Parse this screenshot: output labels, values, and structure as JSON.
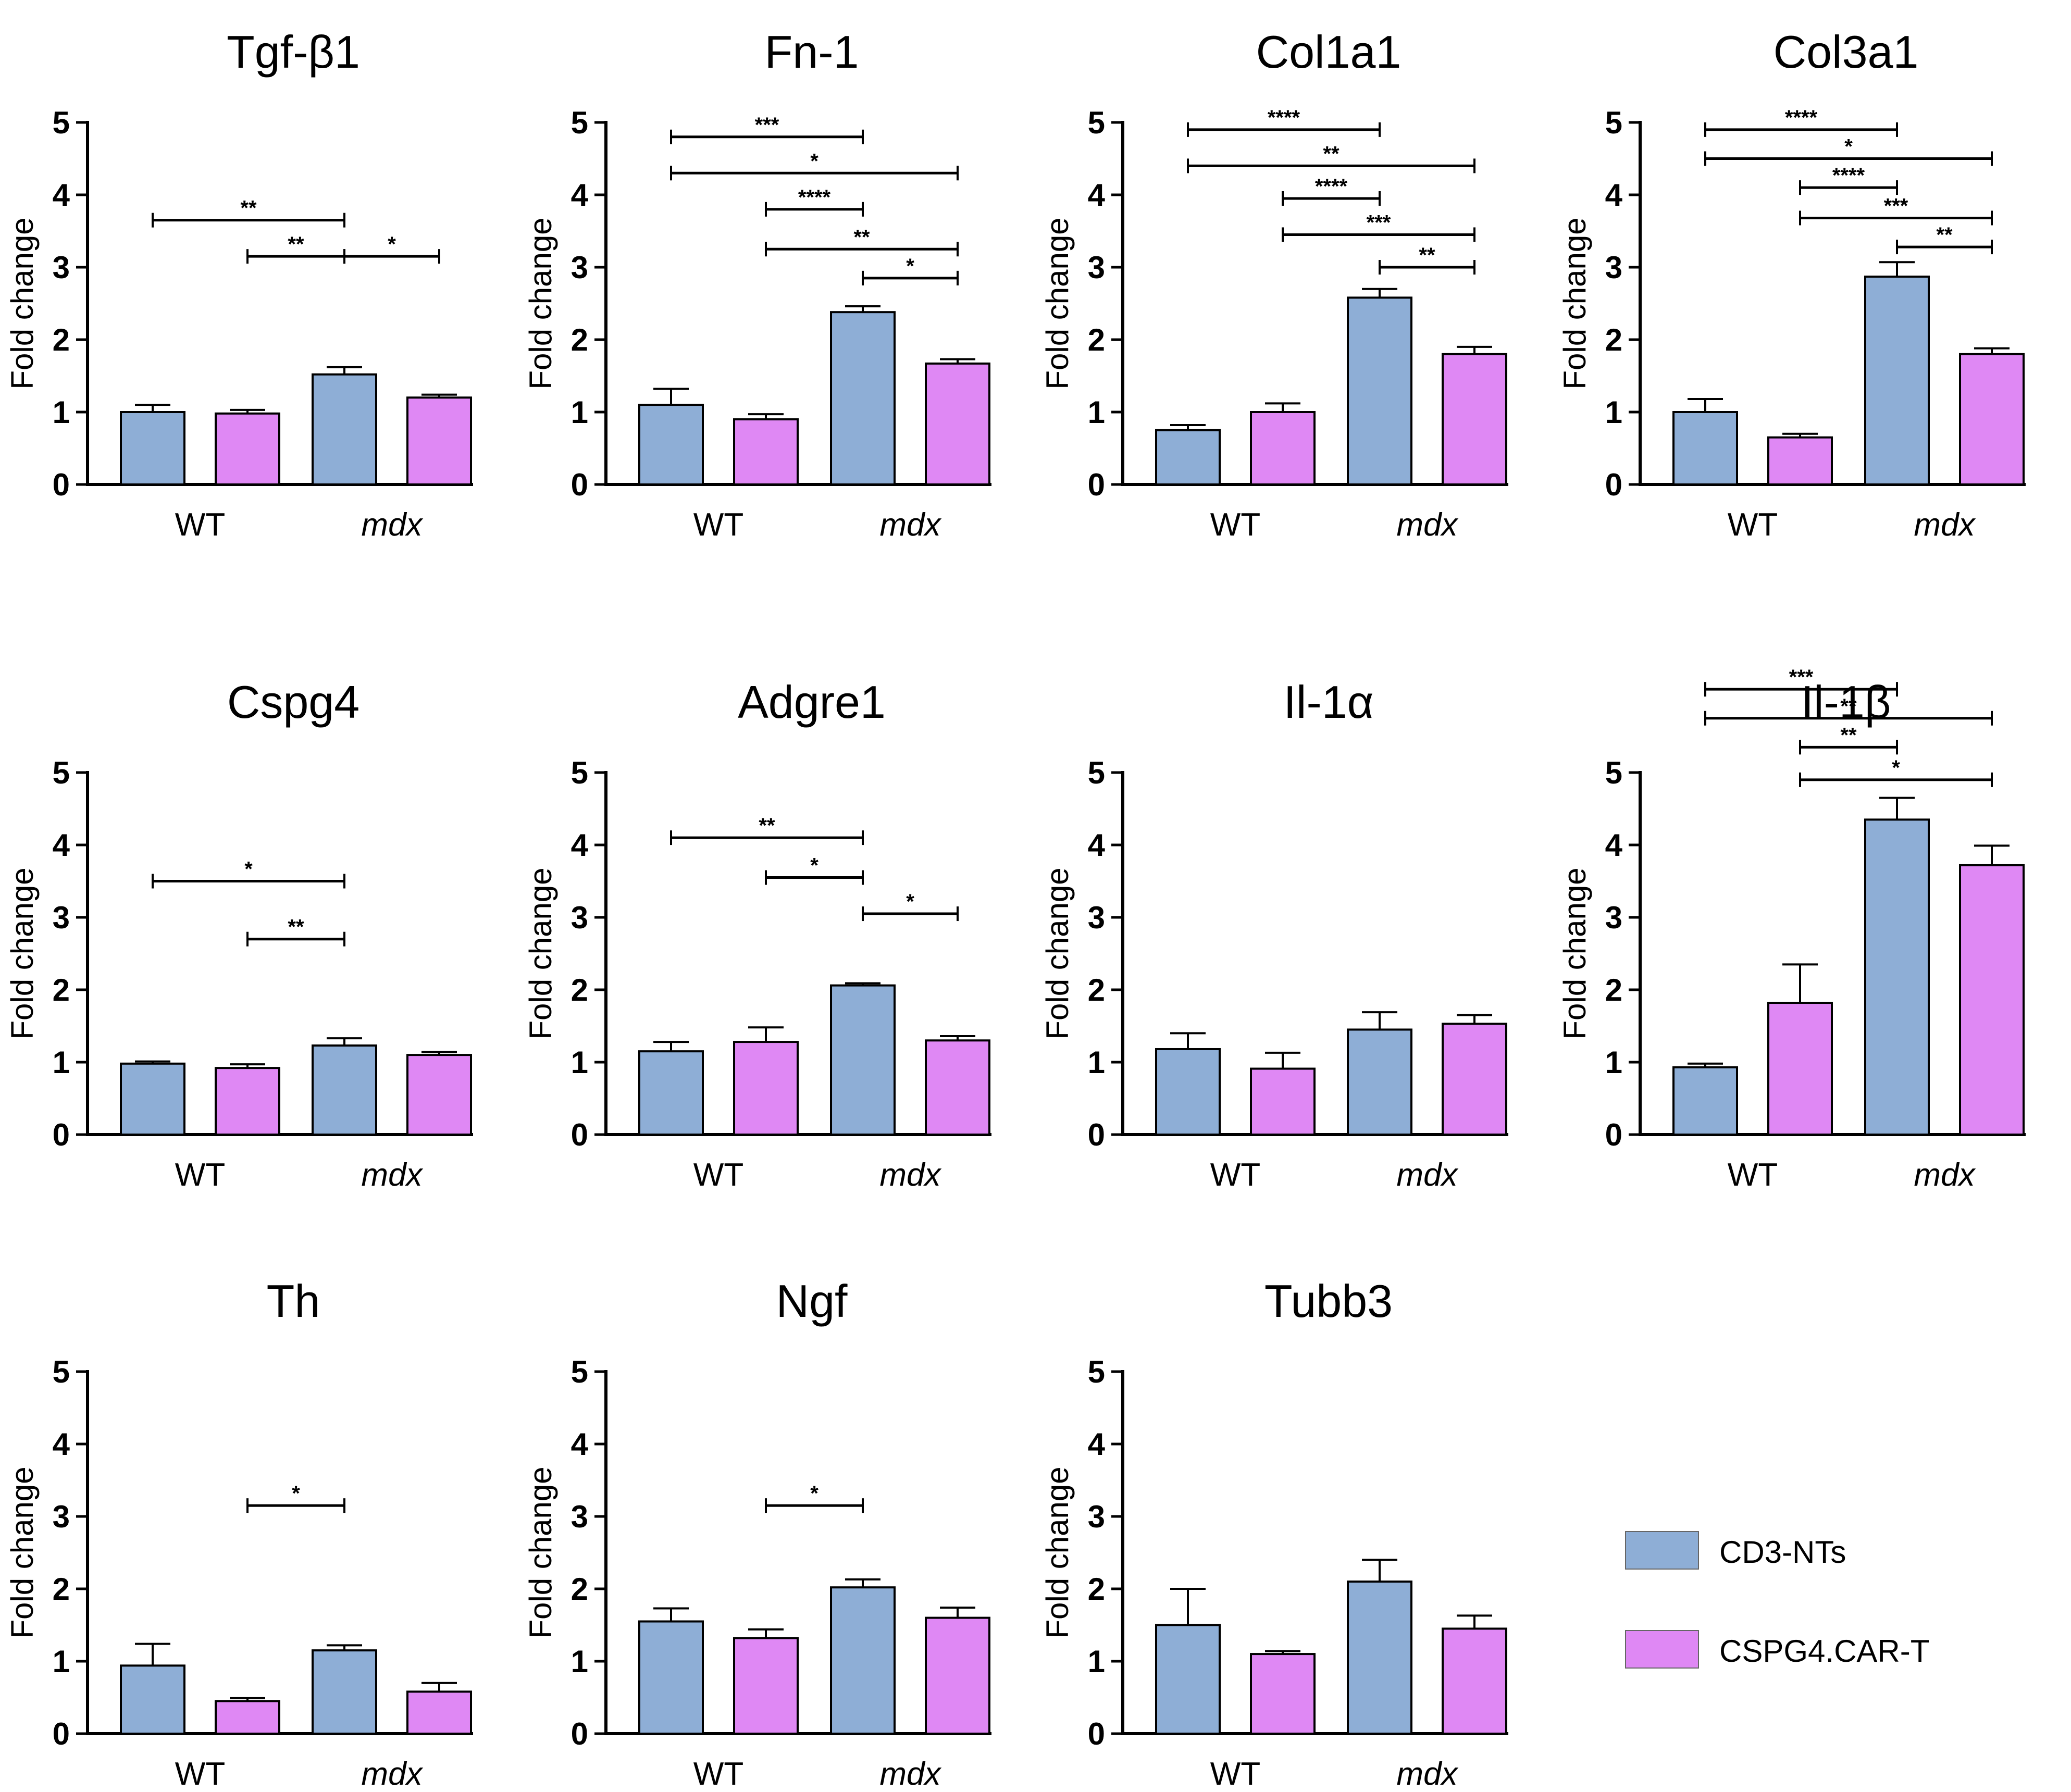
{
  "figure": {
    "legend": [
      {
        "label": "CD3-NTs",
        "color": "#8eaed6"
      },
      {
        "label": "CSPG4.CAR-T",
        "color": "#df88f4"
      }
    ],
    "ylabel": "Fold change",
    "xcategories": [
      "WT",
      "mdx"
    ],
    "yticks": [
      "0",
      "1",
      "2",
      "3",
      "4",
      "5"
    ]
  },
  "chart_data": [
    {
      "type": "bar",
      "title": "Tgf-β1",
      "ylabel": "Fold change",
      "ylim": [
        0,
        5
      ],
      "categories": [
        "WT",
        "mdx"
      ],
      "series": [
        {
          "name": "CD3-NTs",
          "color": "#8eaed6"
        },
        {
          "name": "CSPG4.CAR-T",
          "color": "#df88f4"
        }
      ],
      "bars": [
        {
          "value": 1.0,
          "err": 0.1
        },
        {
          "value": 0.98,
          "err": 0.05
        },
        {
          "value": 1.52,
          "err": 0.1
        },
        {
          "value": 1.2,
          "err": 0.04
        }
      ],
      "significance": [
        {
          "from": 0,
          "to": 2,
          "y": 3.65,
          "label": "**"
        },
        {
          "from": 1,
          "to": 2,
          "y": 3.15,
          "label": "**"
        },
        {
          "from": 2,
          "to": 3,
          "y": 3.15,
          "label": "*"
        }
      ]
    },
    {
      "type": "bar",
      "title": "Fn-1",
      "ylabel": "Fold change",
      "ylim": [
        0,
        5
      ],
      "categories": [
        "WT",
        "mdx"
      ],
      "series": [
        {
          "name": "CD3-NTs",
          "color": "#8eaed6"
        },
        {
          "name": "CSPG4.CAR-T",
          "color": "#df88f4"
        }
      ],
      "bars": [
        {
          "value": 1.1,
          "err": 0.22
        },
        {
          "value": 0.9,
          "err": 0.07
        },
        {
          "value": 2.38,
          "err": 0.08
        },
        {
          "value": 1.67,
          "err": 0.06
        }
      ],
      "significance": [
        {
          "from": 0,
          "to": 2,
          "y": 4.8,
          "label": "***"
        },
        {
          "from": 0,
          "to": 3,
          "y": 4.3,
          "label": "*"
        },
        {
          "from": 1,
          "to": 2,
          "y": 3.8,
          "label": "****"
        },
        {
          "from": 1,
          "to": 3,
          "y": 3.25,
          "label": "**"
        },
        {
          "from": 2,
          "to": 3,
          "y": 2.85,
          "label": "*"
        }
      ]
    },
    {
      "type": "bar",
      "title": "Col1a1",
      "ylabel": "Fold change",
      "ylim": [
        0,
        5
      ],
      "categories": [
        "WT",
        "mdx"
      ],
      "series": [
        {
          "name": "CD3-NTs",
          "color": "#8eaed6"
        },
        {
          "name": "CSPG4.CAR-T",
          "color": "#df88f4"
        }
      ],
      "bars": [
        {
          "value": 0.75,
          "err": 0.07
        },
        {
          "value": 1.0,
          "err": 0.12
        },
        {
          "value": 2.58,
          "err": 0.12
        },
        {
          "value": 1.8,
          "err": 0.1
        }
      ],
      "significance": [
        {
          "from": 0,
          "to": 2,
          "y": 4.9,
          "label": "****"
        },
        {
          "from": 0,
          "to": 3,
          "y": 4.4,
          "label": "**"
        },
        {
          "from": 1,
          "to": 2,
          "y": 3.95,
          "label": "****"
        },
        {
          "from": 1,
          "to": 3,
          "y": 3.45,
          "label": "***"
        },
        {
          "from": 2,
          "to": 3,
          "y": 3.0,
          "label": "**"
        }
      ]
    },
    {
      "type": "bar",
      "title": "Col3a1",
      "ylabel": "Fold change",
      "ylim": [
        0,
        5
      ],
      "categories": [
        "WT",
        "mdx"
      ],
      "series": [
        {
          "name": "CD3-NTs",
          "color": "#8eaed6"
        },
        {
          "name": "CSPG4.CAR-T",
          "color": "#df88f4"
        }
      ],
      "bars": [
        {
          "value": 1.0,
          "err": 0.18
        },
        {
          "value": 0.65,
          "err": 0.05
        },
        {
          "value": 2.87,
          "err": 0.2
        },
        {
          "value": 1.8,
          "err": 0.08
        }
      ],
      "significance": [
        {
          "from": 0,
          "to": 2,
          "y": 4.9,
          "label": "****"
        },
        {
          "from": 0,
          "to": 3,
          "y": 4.5,
          "label": "*"
        },
        {
          "from": 1,
          "to": 2,
          "y": 4.1,
          "label": "****"
        },
        {
          "from": 1,
          "to": 3,
          "y": 3.68,
          "label": "***"
        },
        {
          "from": 2,
          "to": 3,
          "y": 3.28,
          "label": "**"
        }
      ]
    },
    {
      "type": "bar",
      "title": "Cspg4",
      "ylabel": "Fold change",
      "ylim": [
        0,
        5
      ],
      "categories": [
        "WT",
        "mdx"
      ],
      "series": [
        {
          "name": "CD3-NTs",
          "color": "#8eaed6"
        },
        {
          "name": "CSPG4.CAR-T",
          "color": "#df88f4"
        }
      ],
      "bars": [
        {
          "value": 0.98,
          "err": 0.03
        },
        {
          "value": 0.92,
          "err": 0.05
        },
        {
          "value": 1.23,
          "err": 0.1
        },
        {
          "value": 1.1,
          "err": 0.04
        }
      ],
      "significance": [
        {
          "from": 0,
          "to": 2,
          "y": 3.5,
          "label": "*"
        },
        {
          "from": 1,
          "to": 2,
          "y": 2.7,
          "label": "**"
        }
      ]
    },
    {
      "type": "bar",
      "title": "Adgre1",
      "ylabel": "Fold change",
      "ylim": [
        0,
        5
      ],
      "categories": [
        "WT",
        "mdx"
      ],
      "series": [
        {
          "name": "CD3-NTs",
          "color": "#8eaed6"
        },
        {
          "name": "CSPG4.CAR-T",
          "color": "#df88f4"
        }
      ],
      "bars": [
        {
          "value": 1.15,
          "err": 0.13
        },
        {
          "value": 1.28,
          "err": 0.2
        },
        {
          "value": 2.06,
          "err": 0.03
        },
        {
          "value": 1.3,
          "err": 0.06
        }
      ],
      "significance": [
        {
          "from": 0,
          "to": 2,
          "y": 4.1,
          "label": "**"
        },
        {
          "from": 1,
          "to": 2,
          "y": 3.55,
          "label": "*"
        },
        {
          "from": 2,
          "to": 3,
          "y": 3.05,
          "label": "*"
        }
      ]
    },
    {
      "type": "bar",
      "title": "Il-1α",
      "ylabel": "Fold change",
      "ylim": [
        0,
        5
      ],
      "categories": [
        "WT",
        "mdx"
      ],
      "series": [
        {
          "name": "CD3-NTs",
          "color": "#8eaed6"
        },
        {
          "name": "CSPG4.CAR-T",
          "color": "#df88f4"
        }
      ],
      "bars": [
        {
          "value": 1.18,
          "err": 0.22
        },
        {
          "value": 0.91,
          "err": 0.22
        },
        {
          "value": 1.45,
          "err": 0.24
        },
        {
          "value": 1.53,
          "err": 0.12
        }
      ],
      "significance": []
    },
    {
      "type": "bar",
      "title": "Il-1β",
      "ylabel": "Fold change",
      "ylim": [
        0,
        5
      ],
      "categories": [
        "WT",
        "mdx"
      ],
      "series": [
        {
          "name": "CD3-NTs",
          "color": "#8eaed6"
        },
        {
          "name": "CSPG4.CAR-T",
          "color": "#df88f4"
        }
      ],
      "bars": [
        {
          "value": 0.93,
          "err": 0.05
        },
        {
          "value": 1.82,
          "err": 0.53
        },
        {
          "value": 4.35,
          "err": 0.3
        },
        {
          "value": 3.72,
          "err": 0.27
        }
      ],
      "significance": [
        {
          "from": 0,
          "to": 2,
          "y": 6.15,
          "label": "***"
        },
        {
          "from": 0,
          "to": 3,
          "y": 5.75,
          "label": "**"
        },
        {
          "from": 1,
          "to": 2,
          "y": 5.35,
          "label": "**"
        },
        {
          "from": 1,
          "to": 3,
          "y": 4.9,
          "label": "*"
        }
      ]
    },
    {
      "type": "bar",
      "title": "Th",
      "ylabel": "Fold change",
      "ylim": [
        0,
        5
      ],
      "categories": [
        "WT",
        "mdx"
      ],
      "series": [
        {
          "name": "CD3-NTs",
          "color": "#8eaed6"
        },
        {
          "name": "CSPG4.CAR-T",
          "color": "#df88f4"
        }
      ],
      "bars": [
        {
          "value": 0.94,
          "err": 0.3
        },
        {
          "value": 0.45,
          "err": 0.04
        },
        {
          "value": 1.15,
          "err": 0.07
        },
        {
          "value": 0.58,
          "err": 0.12
        }
      ],
      "significance": [
        {
          "from": 1,
          "to": 2,
          "y": 3.15,
          "label": "*"
        }
      ]
    },
    {
      "type": "bar",
      "title": "Ngf",
      "ylabel": "Fold change",
      "ylim": [
        0,
        5
      ],
      "categories": [
        "WT",
        "mdx"
      ],
      "series": [
        {
          "name": "CD3-NTs",
          "color": "#8eaed6"
        },
        {
          "name": "CSPG4.CAR-T",
          "color": "#df88f4"
        }
      ],
      "bars": [
        {
          "value": 1.55,
          "err": 0.18
        },
        {
          "value": 1.32,
          "err": 0.12
        },
        {
          "value": 2.02,
          "err": 0.11
        },
        {
          "value": 1.6,
          "err": 0.14
        }
      ],
      "significance": [
        {
          "from": 1,
          "to": 2,
          "y": 3.15,
          "label": "*"
        }
      ]
    },
    {
      "type": "bar",
      "title": "Tubb3",
      "ylabel": "Fold change",
      "ylim": [
        0,
        5
      ],
      "categories": [
        "WT",
        "mdx"
      ],
      "series": [
        {
          "name": "CD3-NTs",
          "color": "#8eaed6"
        },
        {
          "name": "CSPG4.CAR-T",
          "color": "#df88f4"
        }
      ],
      "bars": [
        {
          "value": 1.5,
          "err": 0.5
        },
        {
          "value": 1.1,
          "err": 0.04
        },
        {
          "value": 2.1,
          "err": 0.3
        },
        {
          "value": 1.45,
          "err": 0.18
        }
      ],
      "significance": []
    }
  ]
}
